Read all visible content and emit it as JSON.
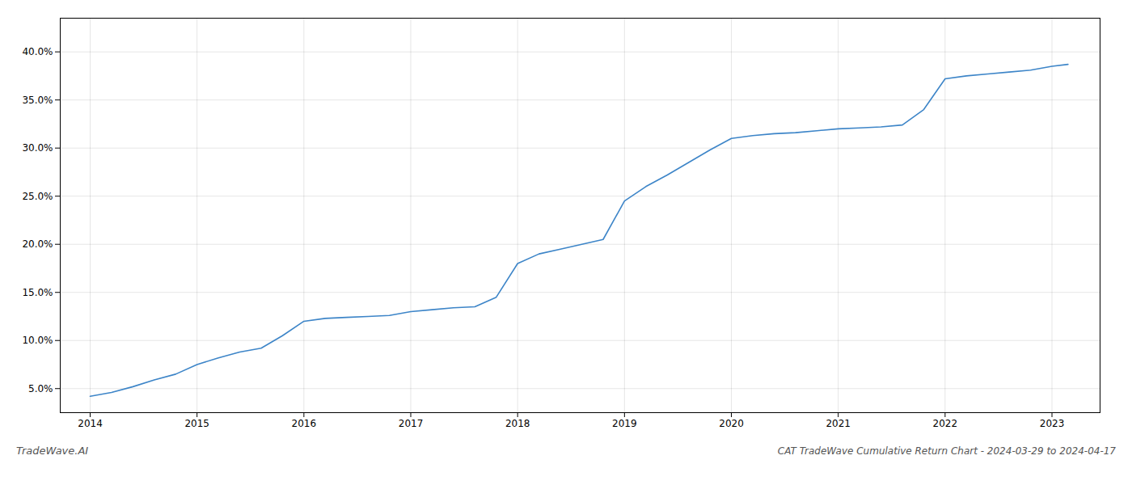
{
  "chart_data": {
    "type": "line",
    "title": "CAT TradeWave Cumulative Return Chart - 2024-03-29 to 2024-04-17",
    "annotations": [
      "TradeWave.AI"
    ],
    "x": [
      2014.0,
      2014.2,
      2014.4,
      2014.6,
      2014.8,
      2015.0,
      2015.2,
      2015.4,
      2015.6,
      2015.8,
      2016.0,
      2016.2,
      2016.4,
      2016.6,
      2016.8,
      2017.0,
      2017.2,
      2017.4,
      2017.6,
      2017.8,
      2018.0,
      2018.2,
      2018.4,
      2018.6,
      2018.8,
      2019.0,
      2019.2,
      2019.4,
      2019.6,
      2019.8,
      2020.0,
      2020.2,
      2020.4,
      2020.6,
      2020.8,
      2021.0,
      2021.2,
      2021.4,
      2021.6,
      2021.8,
      2022.0,
      2022.2,
      2022.4,
      2022.6,
      2022.8,
      2023.0,
      2023.15
    ],
    "values": [
      4.2,
      4.6,
      5.2,
      5.9,
      6.5,
      7.5,
      8.2,
      8.8,
      9.2,
      10.5,
      12.0,
      12.3,
      12.4,
      12.5,
      12.6,
      13.0,
      13.2,
      13.4,
      13.5,
      14.5,
      18.0,
      19.0,
      19.5,
      20.0,
      20.5,
      24.5,
      26.0,
      27.2,
      28.5,
      29.8,
      31.0,
      31.3,
      31.5,
      31.6,
      31.8,
      32.0,
      32.1,
      32.2,
      32.4,
      34.0,
      37.2,
      37.5,
      37.7,
      37.9,
      38.1,
      38.5,
      38.7
    ],
    "color": "#3d85c8",
    "xlim": [
      2013.72,
      2023.45
    ],
    "ylim": [
      2.5,
      43.5
    ],
    "xticks": [
      2014,
      2015,
      2016,
      2017,
      2018,
      2019,
      2020,
      2021,
      2022,
      2023
    ],
    "yticks": [
      {
        "value": 5.0,
        "label": "5.0%"
      },
      {
        "value": 10.0,
        "label": "10.0%"
      },
      {
        "value": 15.0,
        "label": "15.0%"
      },
      {
        "value": 20.0,
        "label": "20.0%"
      },
      {
        "value": 25.0,
        "label": "25.0%"
      },
      {
        "value": 30.0,
        "label": "30.0%"
      },
      {
        "value": 35.0,
        "label": "35.0%"
      },
      {
        "value": 40.0,
        "label": "40.0%"
      }
    ],
    "grid": true
  }
}
